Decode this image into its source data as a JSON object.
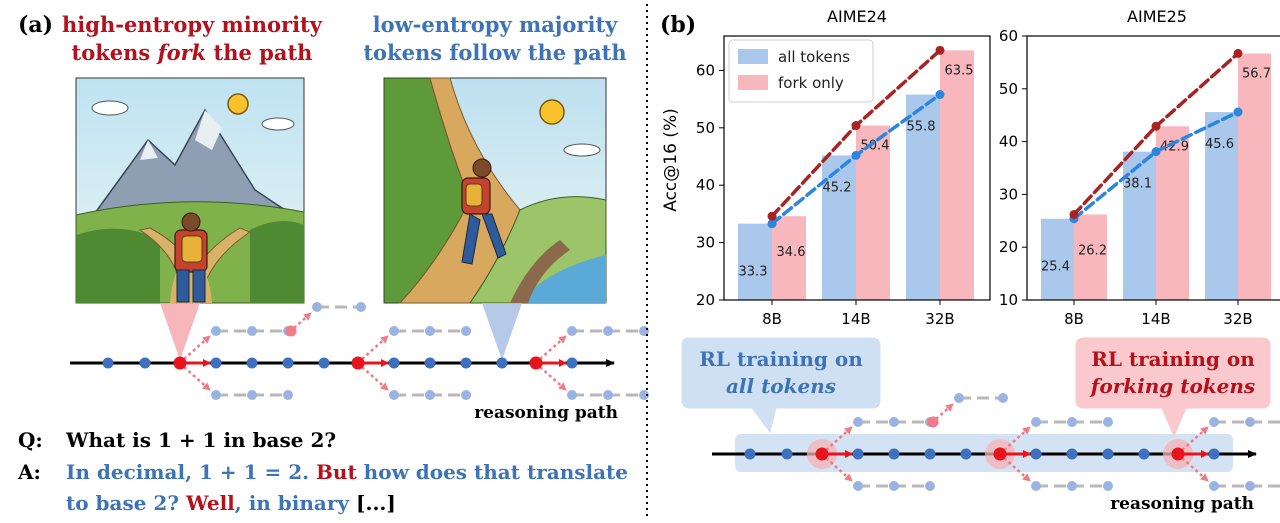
{
  "panel_a": {
    "label": "(a)",
    "fork_title": {
      "pre": "high-entropy minority",
      "line2_pre": "tokens ",
      "line2_em": "fork",
      "line2_post": " the path"
    },
    "follow_title": {
      "line1": "low-entropy majority",
      "line2": "tokens follow the path"
    },
    "path_label": "reasoning path",
    "q_label": "Q:",
    "question": "What is 1 + 1 in base 2?",
    "a_label": "A:",
    "answer": {
      "seg1": "In decimal, 1 + 1 = 2. ",
      "fork1": "But",
      "seg2": " how does that translate",
      "seg3": "to base 2? ",
      "fork2": "Well",
      "seg4": ", in binary ",
      "ellipsis": "[...]"
    }
  },
  "panel_b": {
    "label": "(b)",
    "ylabel": "Acc@16 (%)",
    "legend": [
      "all tokens",
      "fork only"
    ],
    "path_label": "reasoning path",
    "callout_all": {
      "line1": "RL training on",
      "line2": "all tokens"
    },
    "callout_fork": {
      "line1": "RL training on",
      "line2": "forking tokens"
    }
  },
  "colors": {
    "fork_red": "#b5101c",
    "follow_blue": "#3d73b7",
    "bar_blue": "#a9c8ec",
    "bar_pink": "#f7b7bd",
    "line_blue": "#2b86e0",
    "line_red": "#aa2323",
    "node_blue": "#3f6fbf",
    "node_red": "#e8141b"
  },
  "chart_data": [
    {
      "type": "bar",
      "title": "AIME24",
      "categories": [
        "8B",
        "14B",
        "32B"
      ],
      "series": [
        {
          "name": "all tokens",
          "values": [
            33.3,
            45.2,
            55.8
          ]
        },
        {
          "name": "fork only",
          "values": [
            34.6,
            50.4,
            63.5
          ]
        }
      ],
      "ylabel": "Acc@16 (%)",
      "ylim": [
        20,
        66
      ],
      "yticks": [
        20,
        30,
        40,
        50,
        60
      ],
      "legend": "top-left"
    },
    {
      "type": "bar",
      "title": "AIME25",
      "categories": [
        "8B",
        "14B",
        "32B"
      ],
      "series": [
        {
          "name": "all tokens",
          "values": [
            25.4,
            38.1,
            45.6
          ]
        },
        {
          "name": "fork only",
          "values": [
            26.2,
            42.9,
            56.7
          ]
        }
      ],
      "ylim": [
        10,
        60
      ],
      "yticks": [
        10,
        20,
        30,
        40,
        50,
        60
      ]
    }
  ]
}
